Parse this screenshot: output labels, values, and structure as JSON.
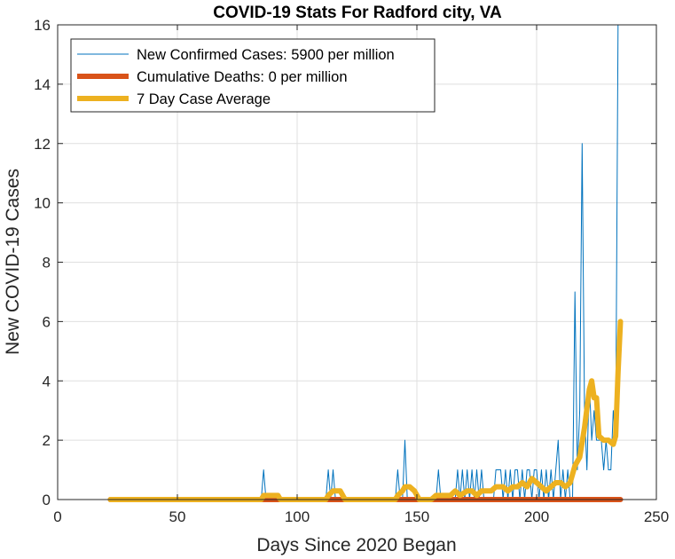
{
  "chart_data": {
    "type": "line",
    "title": "COVID-19 Stats For Radford city, VA",
    "xlabel": "Days Since 2020 Began",
    "ylabel": "New COVID-19 Cases",
    "xlim": [
      0,
      250
    ],
    "ylim": [
      0,
      16
    ],
    "xticks": [
      0,
      50,
      100,
      150,
      200,
      250
    ],
    "yticks": [
      0,
      2,
      4,
      6,
      8,
      10,
      12,
      14,
      16
    ],
    "grid": true,
    "legend_position": "top-left",
    "series": [
      {
        "name": "New Confirmed Cases: 5900 per million",
        "color": "#0072BD",
        "style": "thin",
        "x": [
          22,
          85,
          86,
          87,
          112,
          113,
          114,
          115,
          116,
          141,
          142,
          143,
          144,
          145,
          146,
          147,
          158,
          159,
          160,
          166,
          167,
          168,
          169,
          170,
          171,
          172,
          173,
          174,
          175,
          176,
          177,
          178,
          182,
          183,
          184,
          185,
          186,
          187,
          188,
          189,
          190,
          191,
          192,
          193,
          194,
          195,
          196,
          197,
          198,
          199,
          200,
          201,
          202,
          203,
          204,
          205,
          206,
          207,
          208,
          209,
          210,
          211,
          212,
          213,
          214,
          215,
          216,
          217,
          218,
          219,
          220,
          221,
          222,
          223,
          224,
          225,
          226,
          227,
          228,
          229,
          230,
          231,
          232,
          233,
          234,
          235
        ],
        "y": [
          0,
          0,
          1,
          0,
          0,
          1,
          0,
          1,
          0,
          0,
          1,
          0,
          0,
          2,
          0,
          0,
          0,
          1,
          0,
          0,
          1,
          0,
          1,
          0,
          1,
          0,
          1,
          0,
          1,
          0,
          1,
          0,
          0,
          1,
          1,
          1,
          0,
          1,
          0,
          1,
          0,
          1,
          1,
          0,
          1,
          0,
          1,
          1,
          0,
          1,
          1,
          0,
          1,
          0,
          1,
          0,
          1,
          0,
          1,
          2,
          0,
          1,
          0,
          1,
          0,
          0,
          7,
          1,
          3,
          12,
          3,
          1,
          4,
          2,
          3,
          2,
          2,
          2,
          1,
          2,
          1,
          1,
          3,
          2,
          16,
          16
        ]
      },
      {
        "name": "Cumulative Deaths: 0 per million",
        "color": "#D95319",
        "style": "thick",
        "x": [
          22,
          235
        ],
        "y": [
          0,
          0
        ]
      },
      {
        "name": "7 Day Case Average",
        "color": "#EDB120",
        "style": "thick",
        "x": [
          22,
          85,
          86,
          88,
          92,
          93,
          112,
          113,
          115,
          118,
          120,
          141,
          142,
          144,
          145,
          147,
          149,
          151,
          156,
          158,
          164,
          166,
          168,
          171,
          173,
          175,
          177,
          181,
          183,
          186,
          188,
          190,
          192,
          194,
          196,
          198,
          200,
          202,
          204,
          206,
          208,
          210,
          212,
          214,
          216,
          218,
          220,
          222,
          223,
          224,
          225,
          226,
          228,
          230,
          232,
          233,
          234,
          235
        ],
        "y": [
          0,
          0,
          0.14,
          0.14,
          0.14,
          0,
          0,
          0.14,
          0.29,
          0.29,
          0,
          0,
          0.14,
          0.29,
          0.43,
          0.43,
          0.29,
          0,
          0,
          0.14,
          0.14,
          0.29,
          0.14,
          0.29,
          0.29,
          0.14,
          0.29,
          0.29,
          0.43,
          0.43,
          0.29,
          0.43,
          0.43,
          0.57,
          0.43,
          0.71,
          0.57,
          0.43,
          0.29,
          0.43,
          0.57,
          0.57,
          0.43,
          0.57,
          1.14,
          1.43,
          2.43,
          3.71,
          4.0,
          3.43,
          3.43,
          2.14,
          2.0,
          2.0,
          1.86,
          2.14,
          4.29,
          6.0
        ]
      }
    ]
  }
}
